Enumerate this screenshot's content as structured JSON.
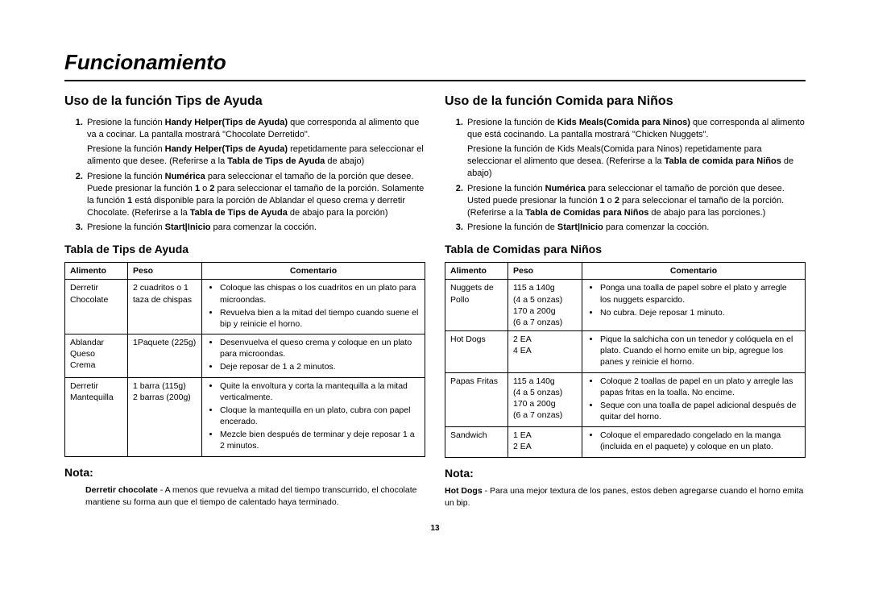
{
  "page_title": "Funcionamiento",
  "page_number": "13",
  "left": {
    "heading": "Uso de la función Tips de Ayuda",
    "steps": [
      {
        "pre": "Presione la función ",
        "bold1": "Handy Helper(Tips de Ayuda)",
        "post": " que corresponda al alimento que va a cocinar. La pantalla mostrará \"Chocolate Derretido\".",
        "sub_pre": "Presione la función ",
        "sub_bold": "Handy Helper(Tips de Ayuda)",
        "sub_mid": " repetidamente para seleccionar el alimento que desee. (Referirse a la ",
        "sub_bold2": "Tabla de Tips de Ayuda",
        "sub_end": " de abajo)"
      },
      {
        "pre": "Presione la función ",
        "bold1": "Numérica",
        "mid": " para seleccionar el tamaño de la porción que desee. Puede presionar la función ",
        "bold2": "1",
        "mid2": " o ",
        "bold3": "2",
        "mid3": " para seleccionar el tamaño de la porción. Solamente la función ",
        "bold4": "1",
        "mid4": " está disponible para la porción de Ablandar el queso crema y derretir Chocolate. (Referirse a la ",
        "bold5": "Tabla de Tips de Ayuda",
        "post": " de abajo para la porción)"
      },
      {
        "pre": "Presione la función ",
        "bold1": "Start|Inicio",
        "post": " para comenzar la cocción."
      }
    ],
    "table_heading": "Tabla de Tips de Ayuda",
    "table_headers": {
      "c1": "Alimento",
      "c2": "Peso",
      "c3": "Comentario"
    },
    "rows": [
      {
        "food": "Derretir Chocolate",
        "weight": "2 cuadritos o 1 taza de chispas",
        "comments": [
          "Coloque las chispas o los cuadritos en un plato para microondas.",
          "Revuelva bien a la mitad del tiempo cuando suene el bip y reinicie el horno."
        ]
      },
      {
        "food": "Ablandar Queso Crema",
        "weight": "1Paquete (225g)",
        "comments": [
          "Desenvuelva el queso crema y coloque en un plato para microondas.",
          "Deje reposar de 1 a 2 minutos."
        ]
      },
      {
        "food": "Derretir Mantequilla",
        "weight": "1 barra (115g)\n2 barras (200g)",
        "comments": [
          "Quite la envoltura y corta la mantequilla a la mitad verticalmente.",
          "Cloque la mantequilla en un plato, cubra con papel encerado.",
          "Mezcle bien después de terminar y deje reposar 1 a 2 minutos."
        ]
      }
    ],
    "nota_label": "Nota:",
    "nota_bold": "Derretir chocolate",
    "nota_text": " - A menos que revuelva a mitad del tiempo transcurrido, el chocolate mantiene su forma aun que el tiempo de calentado haya terminado."
  },
  "right": {
    "heading": "Uso de la función Comida para Niños",
    "steps": [
      {
        "pre": "Presione la función de ",
        "bold1": "Kids Meals(Comida para Ninos)",
        "post": " que corresponda al alimento que está cocinando. La pantalla mostrará \"Chicken Nuggets\".",
        "sub": "Presione la función de Kids Meals(Comida para Ninos) repetidamente para seleccionar el alimento que desea. (Referirse a la ",
        "sub_bold": "Tabla de comida para Niños",
        "sub_end": " de abajo)"
      },
      {
        "pre": "Presione la función ",
        "bold1": "Numérica",
        "mid": " para seleccionar el tamaño de porción que desee. Usted puede presionar la función ",
        "bold2": "1",
        "mid2": " o ",
        "bold3": "2",
        "mid3": " para seleccionar el tamaño de la porción. (Referirse a la ",
        "bold4": "Tabla de Comidas para Niños",
        "post": " de abajo para las porciones.)"
      },
      {
        "pre": "Presione la función de ",
        "bold1": "Start|Inicio",
        "post": " para comenzar la cocción."
      }
    ],
    "table_heading": "Tabla de Comidas para Niños",
    "table_headers": {
      "c1": "Alimento",
      "c2": "Peso",
      "c3": "Comentario"
    },
    "rows": [
      {
        "food": "Nuggets de Pollo",
        "weight": "115 a 140g\n(4 a 5 onzas)\n170 a 200g\n(6 a 7 onzas)",
        "comments": [
          "Ponga una toalla de papel sobre el plato y arregle los nuggets esparcido.",
          "No cubra. Deje reposar 1 minuto."
        ]
      },
      {
        "food": "Hot Dogs",
        "weight": "2 EA\n4 EA",
        "comments": [
          "Pique la salchicha con un tenedor y colóquela en el plato. Cuando el horno emite un bip, agregue los panes y reinicie el horno."
        ]
      },
      {
        "food": "Papas Fritas",
        "weight": "115 a 140g\n(4 a 5 onzas)\n170 a 200g\n(6 a 7 onzas)",
        "comments": [
          "Coloque 2 toallas de papel en un plato y arregle las papas fritas en la toalla. No encime.",
          "Seque con una toalla de papel adicional después de quitar del horno."
        ]
      },
      {
        "food": "Sandwich",
        "weight": "1 EA\n2 EA",
        "comments": [
          "Coloque el emparedado congelado en la manga (incluida en el paquete) y coloque en un plato."
        ]
      }
    ],
    "nota_label": "Nota:",
    "nota_bold": "Hot Dogs",
    "nota_text": " - Para una mejor textura de los panes, estos deben agregarse cuando el horno emita un bip."
  }
}
